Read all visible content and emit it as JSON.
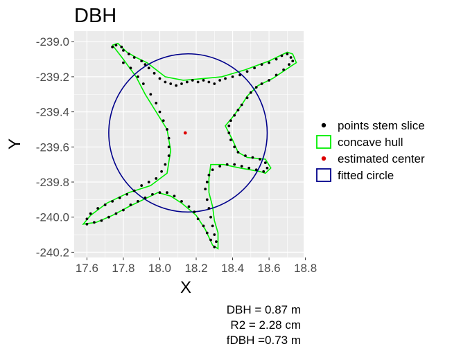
{
  "chart_data": {
    "type": "scatter",
    "title": "DBH",
    "xlabel": "X",
    "ylabel": "Y",
    "xlim": [
      17.53,
      18.79
    ],
    "ylim": [
      -240.23,
      -238.94
    ],
    "x_ticks": [
      17.6,
      17.8,
      18.0,
      18.2,
      18.4,
      18.6,
      18.8
    ],
    "x_tick_labels": [
      "17.6",
      "17.8",
      "18.0",
      "18.2",
      "18.4",
      "18.6",
      "18.8"
    ],
    "y_ticks": [
      -239.0,
      -239.2,
      -239.4,
      -239.6,
      -239.8,
      -240.0,
      -240.2
    ],
    "y_tick_labels": [
      "-239.0",
      "-239.2",
      "-239.4",
      "-239.6",
      "-239.8",
      "-240.0",
      "-240.2"
    ],
    "grid": true,
    "legend_position": "right",
    "legend": [
      {
        "label": "points stem slice",
        "key": "points"
      },
      {
        "label": "concave hull",
        "key": "hull"
      },
      {
        "label": "estimated center",
        "key": "center"
      },
      {
        "label": "fitted circle",
        "key": "circle"
      }
    ],
    "colors": {
      "points": "#000000",
      "hull": "#00ee00",
      "center": "#dd0000",
      "circle": "#00008b",
      "panel": "#ebebeb",
      "grid": "#ffffff"
    },
    "estimated_center": {
      "x": 18.14,
      "y": -239.52
    },
    "fitted_circle": {
      "cx": 18.155,
      "cy": -239.52,
      "r": 0.435
    },
    "concave_hull": [
      [
        17.74,
        -239.02
      ],
      [
        17.77,
        -239.01
      ],
      [
        17.82,
        -239.06
      ],
      [
        17.87,
        -239.09
      ],
      [
        17.93,
        -239.12
      ],
      [
        18.03,
        -239.2
      ],
      [
        18.13,
        -239.22
      ],
      [
        18.24,
        -239.21
      ],
      [
        18.34,
        -239.2
      ],
      [
        18.47,
        -239.16
      ],
      [
        18.6,
        -239.11
      ],
      [
        18.7,
        -239.06
      ],
      [
        18.73,
        -239.07
      ],
      [
        18.75,
        -239.12
      ],
      [
        18.72,
        -239.14
      ],
      [
        18.62,
        -239.21
      ],
      [
        18.54,
        -239.25
      ],
      [
        18.48,
        -239.31
      ],
      [
        18.45,
        -239.36
      ],
      [
        18.4,
        -239.43
      ],
      [
        18.36,
        -239.48
      ],
      [
        18.4,
        -239.56
      ],
      [
        18.43,
        -239.63
      ],
      [
        18.48,
        -239.66
      ],
      [
        18.58,
        -239.67
      ],
      [
        18.61,
        -239.72
      ],
      [
        18.58,
        -239.75
      ],
      [
        18.55,
        -239.74
      ],
      [
        18.44,
        -239.72
      ],
      [
        18.35,
        -239.7
      ],
      [
        18.28,
        -239.7
      ],
      [
        18.27,
        -239.78
      ],
      [
        18.27,
        -239.86
      ],
      [
        18.29,
        -239.94
      ],
      [
        18.3,
        -240.02
      ],
      [
        18.32,
        -240.09
      ],
      [
        18.32,
        -240.18
      ],
      [
        18.29,
        -240.16
      ],
      [
        18.25,
        -240.07
      ],
      [
        18.2,
        -239.99
      ],
      [
        18.12,
        -239.92
      ],
      [
        18.06,
        -239.88
      ],
      [
        17.99,
        -239.86
      ],
      [
        17.93,
        -239.89
      ],
      [
        17.83,
        -239.94
      ],
      [
        17.74,
        -239.99
      ],
      [
        17.65,
        -240.03
      ],
      [
        17.58,
        -240.04
      ],
      [
        17.62,
        -239.99
      ],
      [
        17.71,
        -239.92
      ],
      [
        17.83,
        -239.86
      ],
      [
        17.95,
        -239.82
      ],
      [
        18.04,
        -239.75
      ],
      [
        18.06,
        -239.62
      ],
      [
        18.04,
        -239.5
      ],
      [
        17.98,
        -239.4
      ],
      [
        17.92,
        -239.3
      ],
      [
        17.87,
        -239.2
      ],
      [
        17.8,
        -239.1
      ],
      [
        17.74,
        -239.02
      ]
    ],
    "points": [
      [
        17.74,
        -239.03
      ],
      [
        17.76,
        -239.02
      ],
      [
        17.79,
        -239.03
      ],
      [
        17.8,
        -239.05
      ],
      [
        17.83,
        -239.07
      ],
      [
        17.86,
        -239.09
      ],
      [
        17.9,
        -239.11
      ],
      [
        17.92,
        -239.13
      ],
      [
        17.94,
        -239.15
      ],
      [
        17.97,
        -239.18
      ],
      [
        18.0,
        -239.21
      ],
      [
        18.03,
        -239.23
      ],
      [
        18.06,
        -239.24
      ],
      [
        18.09,
        -239.25
      ],
      [
        18.12,
        -239.24
      ],
      [
        18.15,
        -239.23
      ],
      [
        18.18,
        -239.22
      ],
      [
        18.21,
        -239.23
      ],
      [
        18.24,
        -239.22
      ],
      [
        18.27,
        -239.23
      ],
      [
        18.3,
        -239.24
      ],
      [
        18.33,
        -239.22
      ],
      [
        18.36,
        -239.21
      ],
      [
        18.4,
        -239.2
      ],
      [
        18.44,
        -239.19
      ],
      [
        18.48,
        -239.17
      ],
      [
        18.52,
        -239.15
      ],
      [
        18.56,
        -239.13
      ],
      [
        18.6,
        -239.12
      ],
      [
        18.64,
        -239.1
      ],
      [
        18.67,
        -239.08
      ],
      [
        18.7,
        -239.07
      ],
      [
        18.72,
        -239.09
      ],
      [
        18.73,
        -239.11
      ],
      [
        18.71,
        -239.13
      ],
      [
        18.68,
        -239.16
      ],
      [
        18.64,
        -239.19
      ],
      [
        18.6,
        -239.22
      ],
      [
        18.56,
        -239.24
      ],
      [
        18.53,
        -239.26
      ],
      [
        18.5,
        -239.29
      ],
      [
        18.48,
        -239.32
      ],
      [
        18.45,
        -239.36
      ],
      [
        18.43,
        -239.39
      ],
      [
        18.41,
        -239.42
      ],
      [
        18.39,
        -239.45
      ],
      [
        18.38,
        -239.48
      ],
      [
        18.38,
        -239.52
      ],
      [
        18.39,
        -239.56
      ],
      [
        18.41,
        -239.6
      ],
      [
        18.43,
        -239.63
      ],
      [
        18.47,
        -239.65
      ],
      [
        18.51,
        -239.66
      ],
      [
        18.55,
        -239.67
      ],
      [
        18.58,
        -239.69
      ],
      [
        18.59,
        -239.72
      ],
      [
        18.57,
        -239.74
      ],
      [
        18.53,
        -239.73
      ],
      [
        18.49,
        -239.72
      ],
      [
        18.45,
        -239.71
      ],
      [
        18.41,
        -239.7
      ],
      [
        18.37,
        -239.7
      ],
      [
        18.33,
        -239.71
      ],
      [
        18.29,
        -239.73
      ],
      [
        18.27,
        -239.76
      ],
      [
        18.26,
        -239.8
      ],
      [
        18.25,
        -239.84
      ],
      [
        17.8,
        -239.12
      ],
      [
        17.84,
        -239.15
      ],
      [
        17.88,
        -239.2
      ],
      [
        17.91,
        -239.24
      ],
      [
        17.95,
        -239.3
      ],
      [
        17.98,
        -239.35
      ],
      [
        18.0,
        -239.4
      ],
      [
        18.02,
        -239.45
      ],
      [
        18.04,
        -239.5
      ],
      [
        18.05,
        -239.55
      ],
      [
        18.05,
        -239.6
      ],
      [
        18.05,
        -239.65
      ],
      [
        18.03,
        -239.7
      ],
      [
        18.01,
        -239.74
      ],
      [
        17.98,
        -239.78
      ],
      [
        17.94,
        -239.8
      ],
      [
        17.9,
        -239.82
      ],
      [
        17.86,
        -239.85
      ],
      [
        17.82,
        -239.87
      ],
      [
        17.78,
        -239.89
      ],
      [
        17.74,
        -239.91
      ],
      [
        17.7,
        -239.93
      ],
      [
        17.66,
        -239.95
      ],
      [
        17.62,
        -239.98
      ],
      [
        17.6,
        -240.01
      ],
      [
        17.6,
        -240.04
      ],
      [
        17.64,
        -240.03
      ],
      [
        17.68,
        -240.02
      ],
      [
        17.72,
        -240.0
      ],
      [
        17.76,
        -239.98
      ],
      [
        17.8,
        -239.96
      ],
      [
        17.84,
        -239.93
      ],
      [
        17.88,
        -239.91
      ],
      [
        17.92,
        -239.89
      ],
      [
        17.96,
        -239.87
      ],
      [
        18.0,
        -239.86
      ],
      [
        18.04,
        -239.86
      ],
      [
        18.08,
        -239.88
      ],
      [
        18.12,
        -239.91
      ],
      [
        18.16,
        -239.94
      ],
      [
        18.19,
        -239.97
      ],
      [
        18.21,
        -240.01
      ],
      [
        18.24,
        -240.05
      ],
      [
        18.26,
        -240.09
      ],
      [
        18.28,
        -240.13
      ],
      [
        18.3,
        -240.17
      ],
      [
        18.31,
        -240.14
      ],
      [
        18.3,
        -240.1
      ],
      [
        18.29,
        -240.05
      ],
      [
        18.28,
        -240.0
      ],
      [
        18.27,
        -239.95
      ],
      [
        18.26,
        -239.9
      ]
    ]
  },
  "annotations": {
    "dbh": "DBH = 0.87 m",
    "r2": "R2 = 2.28 cm",
    "fdbh": "fDBH =0.73 m"
  }
}
